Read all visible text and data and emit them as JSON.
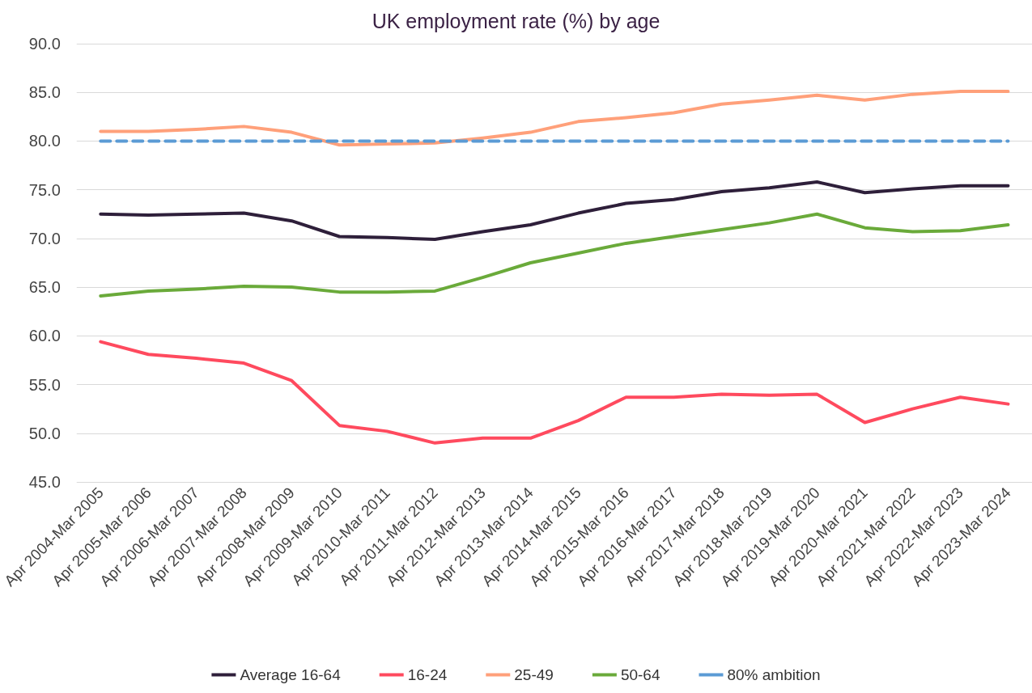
{
  "chart_data": {
    "type": "line",
    "title": "UK employment rate (%) by age",
    "categories": [
      "Apr 2004-Mar 2005",
      "Apr 2005-Mar 2006",
      "Apr 2006-Mar 2007",
      "Apr 2007-Mar 2008",
      "Apr 2008-Mar 2009",
      "Apr 2009-Mar 2010",
      "Apr 2010-Mar 2011",
      "Apr 2011-Mar 2012",
      "Apr 2012-Mar 2013",
      "Apr 2013-Mar 2014",
      "Apr 2014-Mar 2015",
      "Apr 2015-Mar 2016",
      "Apr 2016-Mar 2017",
      "Apr 2017-Mar 2018",
      "Apr 2018-Mar 2019",
      "Apr 2019-Mar 2020",
      "Apr 2020-Mar 2021",
      "Apr 2021-Mar 2022",
      "Apr 2022-Mar 2023",
      "Apr 2023-Mar 2024"
    ],
    "series": [
      {
        "name": "Average 16-64",
        "color": "#2e1f3a",
        "values": [
          72.5,
          72.4,
          72.5,
          72.6,
          71.8,
          70.2,
          70.1,
          69.9,
          70.7,
          71.4,
          72.6,
          73.6,
          74.0,
          74.8,
          75.2,
          75.8,
          74.7,
          75.1,
          75.4,
          75.4
        ]
      },
      {
        "name": "16-24",
        "color": "#ff4a5e",
        "values": [
          59.4,
          58.1,
          57.7,
          57.2,
          55.4,
          50.8,
          50.2,
          49.0,
          49.5,
          49.5,
          51.3,
          53.7,
          53.7,
          54.0,
          53.9,
          54.0,
          51.1,
          52.5,
          53.7,
          53.0
        ]
      },
      {
        "name": "25-49",
        "color": "#ffa07a",
        "values": [
          81.0,
          81.0,
          81.2,
          81.5,
          80.9,
          79.6,
          79.7,
          79.8,
          80.3,
          80.9,
          82.0,
          82.4,
          82.9,
          83.8,
          84.2,
          84.7,
          84.2,
          84.8,
          85.1,
          85.1
        ]
      },
      {
        "name": "50-64",
        "color": "#6aaa3a",
        "values": [
          64.1,
          64.6,
          64.8,
          65.1,
          65.0,
          64.5,
          64.5,
          64.6,
          66.0,
          67.5,
          68.5,
          69.5,
          70.2,
          70.9,
          71.6,
          72.5,
          71.1,
          70.7,
          70.8,
          71.4
        ]
      },
      {
        "name": "80% ambition",
        "color": "#5b9bd5",
        "line_style": "dashed",
        "values": [
          80,
          80,
          80,
          80,
          80,
          80,
          80,
          80,
          80,
          80,
          80,
          80,
          80,
          80,
          80,
          80,
          80,
          80,
          80,
          80
        ]
      }
    ],
    "ylim": [
      45,
      90
    ],
    "yticks": [
      {
        "value": 45,
        "label": "45.0"
      },
      {
        "value": 50,
        "label": "50.0"
      },
      {
        "value": 55,
        "label": "55.0"
      },
      {
        "value": 60,
        "label": "60.0"
      },
      {
        "value": 65,
        "label": "65.0"
      },
      {
        "value": 70,
        "label": "70.0"
      },
      {
        "value": 75,
        "label": "75.0"
      },
      {
        "value": 80,
        "label": "80.0"
      },
      {
        "value": 85,
        "label": "85.0"
      },
      {
        "value": 90,
        "label": "90.0"
      }
    ],
    "grid": "y",
    "legend": "bottom",
    "marker": "none",
    "line_style": "solid"
  }
}
